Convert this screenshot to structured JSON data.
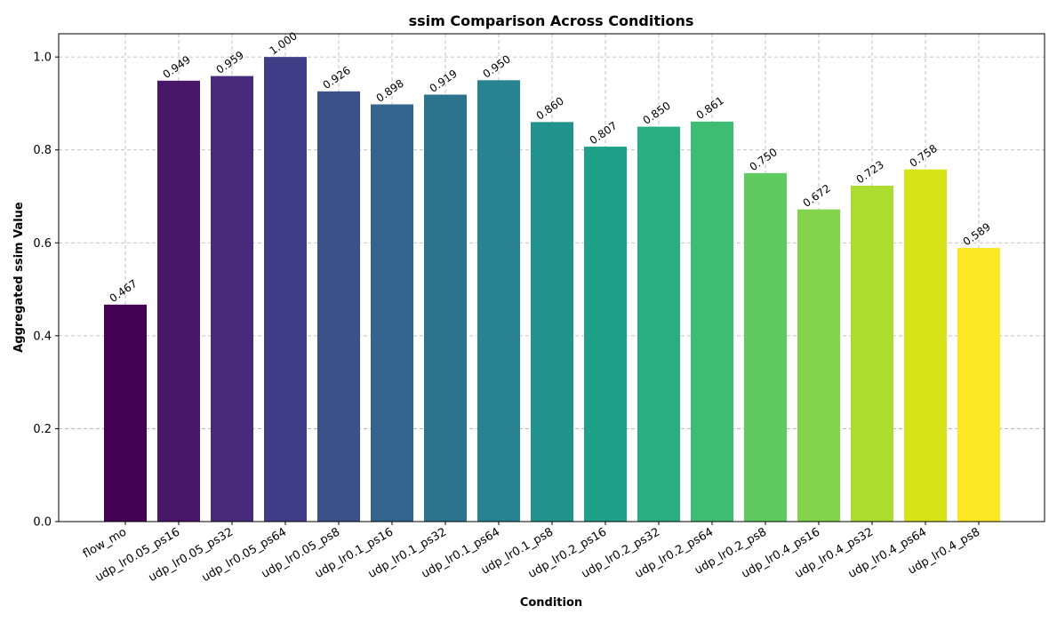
{
  "chart_data": {
    "type": "bar",
    "title": "ssim Comparison Across Conditions",
    "xlabel": "Condition",
    "ylabel": "Aggregated ssim Value",
    "ylim": [
      0,
      1.05
    ],
    "yticks": [
      0.0,
      0.2,
      0.4,
      0.6,
      0.8,
      1.0
    ],
    "grid": true,
    "categories": [
      "flow_mo",
      "udp_lr0.05_ps16",
      "udp_lr0.05_ps32",
      "udp_lr0.05_ps64",
      "udp_lr0.05_ps8",
      "udp_lr0.1_ps16",
      "udp_lr0.1_ps32",
      "udp_lr0.1_ps64",
      "udp_lr0.1_ps8",
      "udp_lr0.2_ps16",
      "udp_lr0.2_ps32",
      "udp_lr0.2_ps64",
      "udp_lr0.2_ps8",
      "udp_lr0.4_ps16",
      "udp_lr0.4_ps32",
      "udp_lr0.4_ps64",
      "udp_lr0.4_ps8"
    ],
    "values": [
      0.467,
      0.949,
      0.959,
      1.0,
      0.926,
      0.898,
      0.919,
      0.95,
      0.86,
      0.807,
      0.85,
      0.861,
      0.75,
      0.672,
      0.723,
      0.758,
      0.589
    ],
    "value_labels": [
      "0.467",
      "0.949",
      "0.959",
      "1.000",
      "0.926",
      "0.898",
      "0.919",
      "0.950",
      "0.860",
      "0.807",
      "0.850",
      "0.861",
      "0.750",
      "0.672",
      "0.723",
      "0.758",
      "0.589"
    ],
    "colors": [
      "#440154",
      "#481769",
      "#472a7a",
      "#3f3d85",
      "#3a518a",
      "#32648e",
      "#2c738e",
      "#26838f",
      "#21938c",
      "#1fa088",
      "#28ae80",
      "#3fbc73",
      "#5fca60",
      "#84d44b",
      "#addc30",
      "#d8e219",
      "#fde725"
    ]
  }
}
